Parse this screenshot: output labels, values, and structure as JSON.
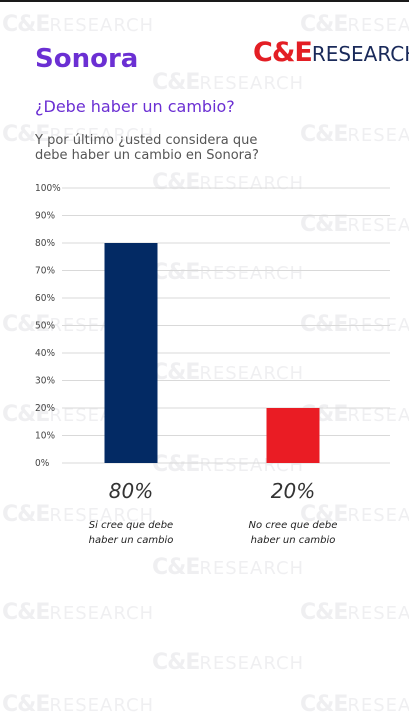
{
  "header": {
    "title": "Sonora",
    "logo_ce": "C&E",
    "logo_research": "RESEARCH",
    "logo_bar_colors": [
      "#1a2a5a",
      "#e31e24",
      "#f2c200"
    ]
  },
  "question": "¿Debe haber un cambio?",
  "subtitle": "Y por último ¿usted considera que debe haber un cambio en Sonora?",
  "watermark": {
    "ce": "C&E",
    "research": "RESEARCH"
  },
  "colors": {
    "title": "#6b2fd3",
    "bar_si": "#032a64",
    "bar_no": "#ea1c24",
    "grid": "#d9d9d9"
  },
  "chart_data": {
    "type": "bar",
    "categories": [
      "Si cree que debe haber un cambio",
      "No cree que debe haber un cambio"
    ],
    "category_lines": [
      [
        "Si cree que debe",
        "haber un cambio"
      ],
      [
        "No cree que debe",
        "haber un cambio"
      ]
    ],
    "values": [
      80,
      20
    ],
    "value_labels": [
      "80%",
      "20%"
    ],
    "bar_colors": [
      "#032a64",
      "#ea1c24"
    ],
    "y_ticks": [
      "0%",
      "10%",
      "20%",
      "30%",
      "40%",
      "50%",
      "60%",
      "70%",
      "80%",
      "90%",
      "100%"
    ],
    "ylim": [
      0,
      100
    ],
    "title": "",
    "xlabel": "",
    "ylabel": "",
    "grid": true,
    "legend": "none"
  }
}
